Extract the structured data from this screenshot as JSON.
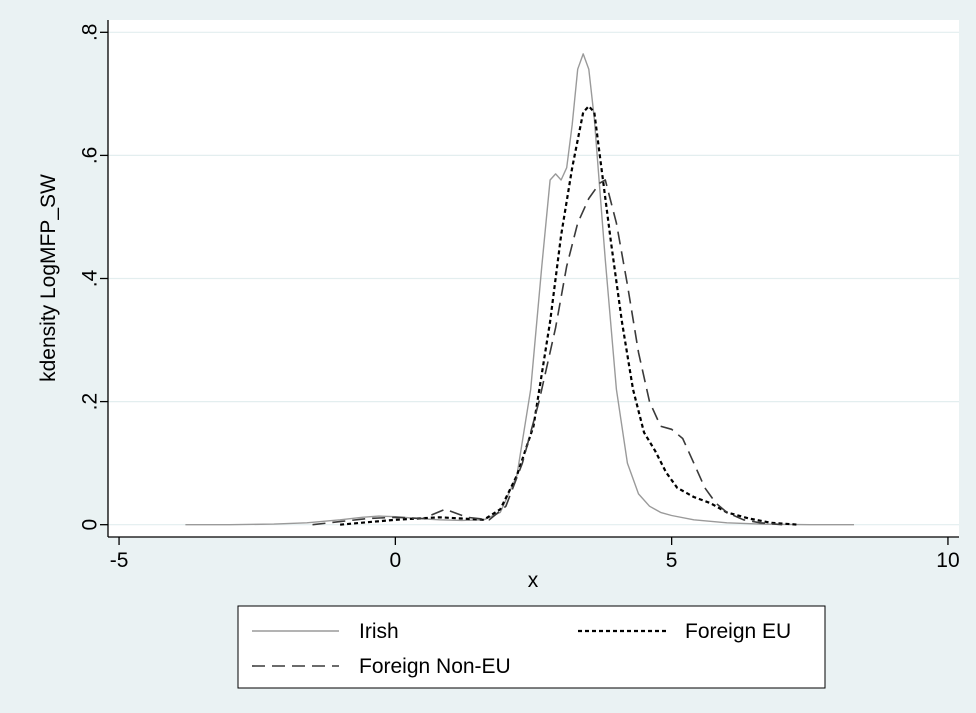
{
  "chart_data": {
    "type": "line",
    "title": "",
    "xlabel": "x",
    "ylabel": "kdensity LogMFP_SW",
    "xlim": [
      -5.2,
      10.2
    ],
    "ylim": [
      -0.02,
      0.82
    ],
    "xticks": [
      -5,
      0,
      5,
      10
    ],
    "xtick_labels": [
      "-5",
      "0",
      "5",
      "10"
    ],
    "yticks": [
      0,
      0.2,
      0.4,
      0.6,
      0.8
    ],
    "ytick_labels": [
      "0",
      ".2",
      ".4",
      ".6",
      ".8"
    ],
    "grid": true,
    "legend_placement": "bottom",
    "colors": {
      "background": "#eaf2f3",
      "plot_background": "#ffffff",
      "grid": "#e3eeef",
      "irish": "#9a9a9a",
      "foreign_eu": "#000000",
      "foreign_non_eu": "#3a3a3a"
    },
    "series": [
      {
        "name": "Irish",
        "style": "solid",
        "x": [
          -3.8,
          -3.0,
          -2.2,
          -1.6,
          -1.0,
          -0.6,
          -0.3,
          0.0,
          0.4,
          0.8,
          1.2,
          1.6,
          1.9,
          2.2,
          2.45,
          2.65,
          2.8,
          2.9,
          3.0,
          3.1,
          3.2,
          3.3,
          3.4,
          3.5,
          3.6,
          3.8,
          4.0,
          4.2,
          4.4,
          4.6,
          4.8,
          5.0,
          5.4,
          6.0,
          6.6,
          7.5,
          8.3
        ],
        "y": [
          0,
          0,
          0.001,
          0.003,
          0.008,
          0.012,
          0.014,
          0.013,
          0.01,
          0.008,
          0.007,
          0.008,
          0.02,
          0.08,
          0.22,
          0.42,
          0.56,
          0.57,
          0.56,
          0.58,
          0.65,
          0.74,
          0.765,
          0.74,
          0.66,
          0.43,
          0.22,
          0.1,
          0.05,
          0.03,
          0.02,
          0.015,
          0.008,
          0.003,
          0.001,
          0,
          0
        ]
      },
      {
        "name": "Foreign EU",
        "style": "short-dash",
        "x": [
          -1.0,
          -0.5,
          0.0,
          0.4,
          0.8,
          1.2,
          1.6,
          1.9,
          2.2,
          2.5,
          2.8,
          3.0,
          3.2,
          3.4,
          3.5,
          3.6,
          3.7,
          3.9,
          4.1,
          4.3,
          4.5,
          4.7,
          4.9,
          5.1,
          5.4,
          5.7,
          6.0,
          6.4,
          6.8,
          7.3
        ],
        "y": [
          0,
          0.004,
          0.008,
          0.01,
          0.012,
          0.01,
          0.008,
          0.025,
          0.08,
          0.16,
          0.33,
          0.47,
          0.58,
          0.67,
          0.68,
          0.67,
          0.6,
          0.46,
          0.33,
          0.22,
          0.15,
          0.12,
          0.085,
          0.06,
          0.045,
          0.035,
          0.02,
          0.01,
          0.003,
          0
        ]
      },
      {
        "name": "Foreign Non-EU",
        "style": "long-dash",
        "x": [
          -1.5,
          -1.0,
          -0.5,
          0.0,
          0.5,
          0.9,
          1.3,
          1.7,
          2.0,
          2.3,
          2.6,
          2.9,
          3.1,
          3.3,
          3.5,
          3.7,
          3.8,
          4.0,
          4.2,
          4.4,
          4.6,
          4.8,
          5.0,
          5.2,
          5.4,
          5.6,
          5.8,
          6.0,
          6.3,
          6.6,
          7.0
        ],
        "y": [
          0,
          0.005,
          0.01,
          0.012,
          0.01,
          0.025,
          0.012,
          0.008,
          0.03,
          0.1,
          0.2,
          0.32,
          0.42,
          0.49,
          0.53,
          0.555,
          0.56,
          0.49,
          0.39,
          0.28,
          0.2,
          0.16,
          0.155,
          0.14,
          0.1,
          0.06,
          0.035,
          0.02,
          0.008,
          0.003,
          0
        ]
      }
    ]
  }
}
